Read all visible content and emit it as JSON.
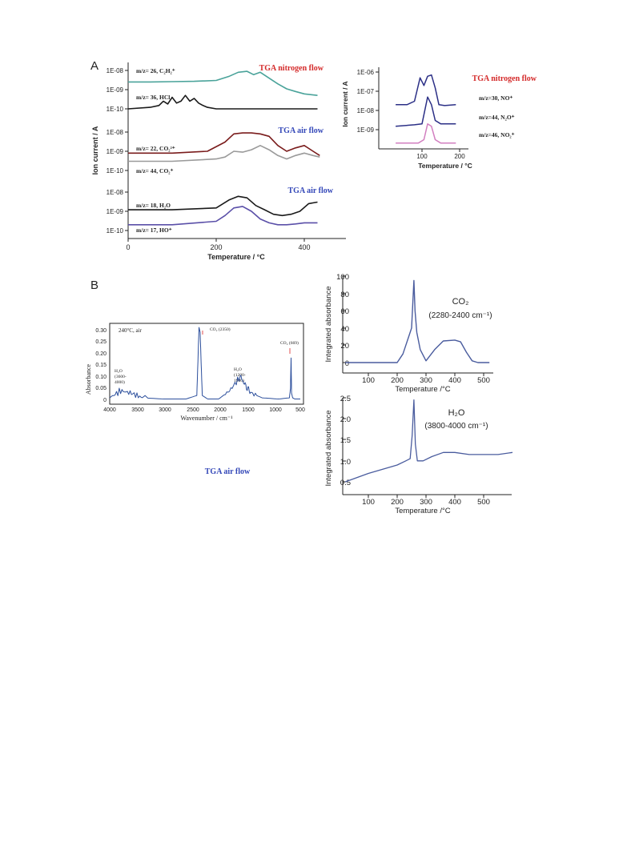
{
  "panel_labels": {
    "a": "A",
    "b": "B"
  },
  "colors": {
    "red": "#d42a2a",
    "blue": "#3347b8",
    "teal": "#4aa39a",
    "black": "#1a1a1a",
    "dark_red": "#7a1c1c",
    "gray": "#9a9a9a",
    "navy": "#2b2f86",
    "violet": "#5a4fa8",
    "pink": "#d27fc0",
    "spectrum": "#2c4f9c",
    "marker": "#e05050",
    "trace": "#4a5c9e"
  },
  "panel_a_left": {
    "title_nitrogen": "TGA nitrogen flow",
    "title_air1": "TGA air flow",
    "title_air2": "TGA air flow",
    "ylabel": "Ion current / A",
    "xlabel": "Temperature / °C",
    "xticks": [
      "0",
      "200",
      "400"
    ],
    "group1_yticks": [
      "1E-08",
      "1E-09",
      "1E-10"
    ],
    "group2_yticks": [
      "1E-08",
      "1E-09",
      "1E-10"
    ],
    "group3_yticks": [
      "1E-08",
      "1E-09",
      "1E-10"
    ],
    "label_c2h2": "m/z= 26, C₂H₂⁺",
    "label_hcl": "m/z= 36, HCl",
    "label_co2_2": "m/z= 22, CO₂²⁺",
    "label_co2": "m/z= 44, CO₂⁺",
    "label_h2o": "m/z= 18, H₂O",
    "label_ho": "m/z= 17, HO⁺"
  },
  "panel_a_right": {
    "title": "TGA nitrogen flow",
    "ylabel": "Ion current / A",
    "xlabel": "Temperature / °C",
    "yticks": [
      "1E-06",
      "1E-07",
      "1E-08",
      "1E-09"
    ],
    "xticks": [
      "100",
      "200"
    ],
    "label_no": "m/z=30, NO⁺",
    "label_n2o": "m/z=44, N₂O⁺",
    "label_no2": "m/z=46, NO₂⁺"
  },
  "panel_b_ftir": {
    "annotation": "240°C, air",
    "ylabel": "Absorbance",
    "xlabel": "Wavenumber / cm⁻¹",
    "yticks": [
      "0.30",
      "0.25",
      "0.20",
      "0.15",
      "0.10",
      "0.05",
      "0"
    ],
    "xticks": [
      "4000",
      "3500",
      "3000",
      "2500",
      "2000",
      "1500",
      "1000",
      "500"
    ],
    "peak_co2_2350": "CO₂ (2350)",
    "peak_co2_669": "CO₂ (669)",
    "peak_h2o_1": "H₂O",
    "peak_h2o_1_range_a": "(3600-",
    "peak_h2o_1_range_b": "4000)",
    "peak_h2o_2": "H₂O",
    "peak_h2o_2_range_a": "(1200-",
    "peak_h2o_2_range_b": "1900)",
    "footer": "TGA air flow"
  },
  "panel_b_co2": {
    "ylabel": "Integrated absorbance",
    "xlabel": "Temperature /°C",
    "yticks": [
      "100",
      "80",
      "60",
      "40",
      "20",
      "0"
    ],
    "xticks": [
      "100",
      "200",
      "300",
      "400",
      "500"
    ],
    "legend_species": "CO₂",
    "legend_range": "(2280-2400 cm⁻¹)"
  },
  "panel_b_h2o": {
    "ylabel": "Integrated absorbance",
    "xlabel": "Temperature /°C",
    "yticks": [
      "2.5",
      "2.0",
      "1.5",
      "1.0",
      "0.5"
    ],
    "xticks": [
      "100",
      "200",
      "300",
      "400",
      "500"
    ],
    "legend_species": "H₂O",
    "legend_range": "(3800-4000 cm⁻¹)"
  },
  "chart_data": [
    {
      "type": "line",
      "panel": "A-left",
      "xlabel": "Temperature / °C",
      "ylabel": "Ion current / A",
      "xlim": [
        0,
        440
      ],
      "yscale": "log",
      "series": [
        {
          "name": "m/z= 26, C₂H₂⁺",
          "x": [
            0,
            50,
            100,
            150,
            200,
            230,
            250,
            270,
            285,
            300,
            320,
            340,
            360,
            380,
            400,
            430
          ],
          "y": [
            2.5e-09,
            2.5e-09,
            2.6e-09,
            2.7e-09,
            3e-09,
            5e-09,
            8e-09,
            9e-09,
            6e-09,
            8e-09,
            4e-09,
            2e-09,
            1.1e-09,
            8e-10,
            6e-10,
            5e-10
          ]
        },
        {
          "name": "m/z= 36, HCl",
          "x": [
            0,
            50,
            70,
            80,
            90,
            100,
            110,
            120,
            130,
            140,
            150,
            160,
            170,
            180,
            200,
            430
          ],
          "y": [
            1e-10,
            1.2e-10,
            1.5e-10,
            2.5e-10,
            1.8e-10,
            4e-10,
            2e-10,
            2.5e-10,
            5e-10,
            2.5e-10,
            3.5e-10,
            2e-10,
            1.5e-10,
            1.2e-10,
            1e-10,
            1e-10
          ]
        },
        {
          "name": "m/z= 22, CO₂²⁺",
          "x": [
            0,
            100,
            180,
            220,
            240,
            260,
            280,
            300,
            320,
            340,
            360,
            380,
            400,
            420,
            435
          ],
          "y": [
            8e-10,
            8e-10,
            1e-09,
            3e-09,
            8e-09,
            9e-09,
            9e-09,
            8e-09,
            6e-09,
            2e-09,
            1e-09,
            1.5e-09,
            2e-09,
            1e-09,
            6e-10
          ]
        },
        {
          "name": "m/z= 44, CO₂⁺",
          "x": [
            0,
            100,
            200,
            220,
            240,
            260,
            280,
            300,
            320,
            340,
            360,
            380,
            400,
            420,
            435
          ],
          "y": [
            3e-10,
            3e-10,
            4e-10,
            5e-10,
            1e-09,
            9e-10,
            1.2e-09,
            2e-09,
            1.2e-09,
            6e-10,
            4e-10,
            6e-10,
            8e-10,
            6e-10,
            5e-10
          ]
        },
        {
          "name": "m/z= 18, H₂O",
          "x": [
            0,
            100,
            200,
            230,
            250,
            270,
            290,
            310,
            330,
            350,
            370,
            390,
            410,
            430
          ],
          "y": [
            1.2e-09,
            1.2e-09,
            1.5e-09,
            4e-09,
            6e-09,
            5e-09,
            2e-09,
            1.2e-09,
            7e-10,
            6e-10,
            7e-10,
            1e-09,
            2.5e-09,
            3e-09
          ]
        },
        {
          "name": "m/z= 17, HO⁺",
          "x": [
            0,
            100,
            200,
            220,
            240,
            260,
            280,
            300,
            320,
            340,
            360,
            380,
            400,
            430
          ],
          "y": [
            2e-10,
            2e-10,
            3e-10,
            6e-10,
            1.5e-09,
            1.8e-09,
            1e-09,
            4e-10,
            2.5e-10,
            2e-10,
            2e-10,
            2.2e-10,
            2.5e-10,
            2.5e-10
          ]
        }
      ]
    },
    {
      "type": "line",
      "panel": "A-right",
      "xlabel": "Temperature / °C",
      "ylabel": "Ion current / A",
      "xlim": [
        0,
        200
      ],
      "yscale": "log",
      "series": [
        {
          "name": "m/z=30, NO⁺",
          "x": [
            30,
            60,
            80,
            95,
            105,
            115,
            125,
            135,
            145,
            160,
            190
          ],
          "y": [
            2e-08,
            2e-08,
            3e-08,
            5e-07,
            2e-07,
            6e-07,
            7e-07,
            1.5e-07,
            2e-08,
            1.8e-08,
            2e-08
          ]
        },
        {
          "name": "m/z=44, N₂O⁺",
          "x": [
            30,
            80,
            100,
            115,
            125,
            135,
            150,
            190
          ],
          "y": [
            1.5e-09,
            1.8e-09,
            2e-09,
            5e-08,
            2e-08,
            3e-09,
            2e-09,
            2e-09
          ]
        },
        {
          "name": "m/z=46, NO₂⁺",
          "x": [
            30,
            90,
            105,
            115,
            125,
            135,
            150,
            190
          ],
          "y": [
            2e-10,
            2e-10,
            3e-10,
            2e-09,
            1.5e-09,
            3e-10,
            2e-10,
            2e-10
          ]
        }
      ]
    },
    {
      "type": "line",
      "panel": "B-ftir",
      "xlabel": "Wavenumber / cm⁻¹",
      "ylabel": "Absorbance",
      "xlim": [
        4000,
        500
      ],
      "ylim": [
        0,
        0.33
      ],
      "series": [
        {
          "x": [
            4000,
            3800,
            3600,
            3400,
            3000,
            2600,
            2400,
            2360,
            2340,
            2300,
            2200,
            2000,
            1800,
            1600,
            1500,
            1400,
            1200,
            900,
            700,
            680,
            669,
            660,
            640,
            600,
            500
          ],
          "y": [
            0.01,
            0.04,
            0.03,
            0.01,
            0.005,
            0.005,
            0.02,
            0.31,
            0.29,
            0.02,
            0.005,
            0.005,
            0.04,
            0.1,
            0.06,
            0.03,
            0.01,
            0.005,
            0.01,
            0.05,
            0.18,
            0.03,
            0.01,
            0.005,
            0.005
          ]
        }
      ]
    },
    {
      "type": "line",
      "panel": "B-CO2",
      "xlabel": "Temperature /°C",
      "ylabel": "Integrated absorbance",
      "xlim": [
        20,
        600
      ],
      "ylim": [
        0,
        100
      ],
      "series": [
        {
          "name": "CO₂ (2280-2400 cm⁻¹)",
          "x": [
            20,
            100,
            150,
            200,
            220,
            240,
            250,
            258,
            262,
            268,
            280,
            300,
            330,
            360,
            400,
            420,
            440,
            460,
            480,
            500,
            520
          ],
          "y": [
            0,
            0,
            0,
            0,
            10,
            30,
            40,
            95,
            60,
            35,
            15,
            2,
            15,
            25,
            26,
            24,
            12,
            2,
            0,
            0,
            0
          ]
        }
      ]
    },
    {
      "type": "line",
      "panel": "B-H2O",
      "xlabel": "Temperature /°C",
      "ylabel": "Integrated absorbance",
      "xlim": [
        20,
        600
      ],
      "ylim": [
        0.4,
        2.5
      ],
      "series": [
        {
          "name": "H₂O (3800-4000 cm⁻¹)",
          "x": [
            20,
            100,
            150,
            200,
            230,
            245,
            252,
            258,
            263,
            270,
            290,
            320,
            360,
            400,
            450,
            500,
            550,
            600
          ],
          "y": [
            0.5,
            0.7,
            0.8,
            0.9,
            1.0,
            1.05,
            1.6,
            2.45,
            1.4,
            1.0,
            1.0,
            1.1,
            1.2,
            1.2,
            1.15,
            1.15,
            1.15,
            1.2
          ]
        }
      ]
    }
  ]
}
